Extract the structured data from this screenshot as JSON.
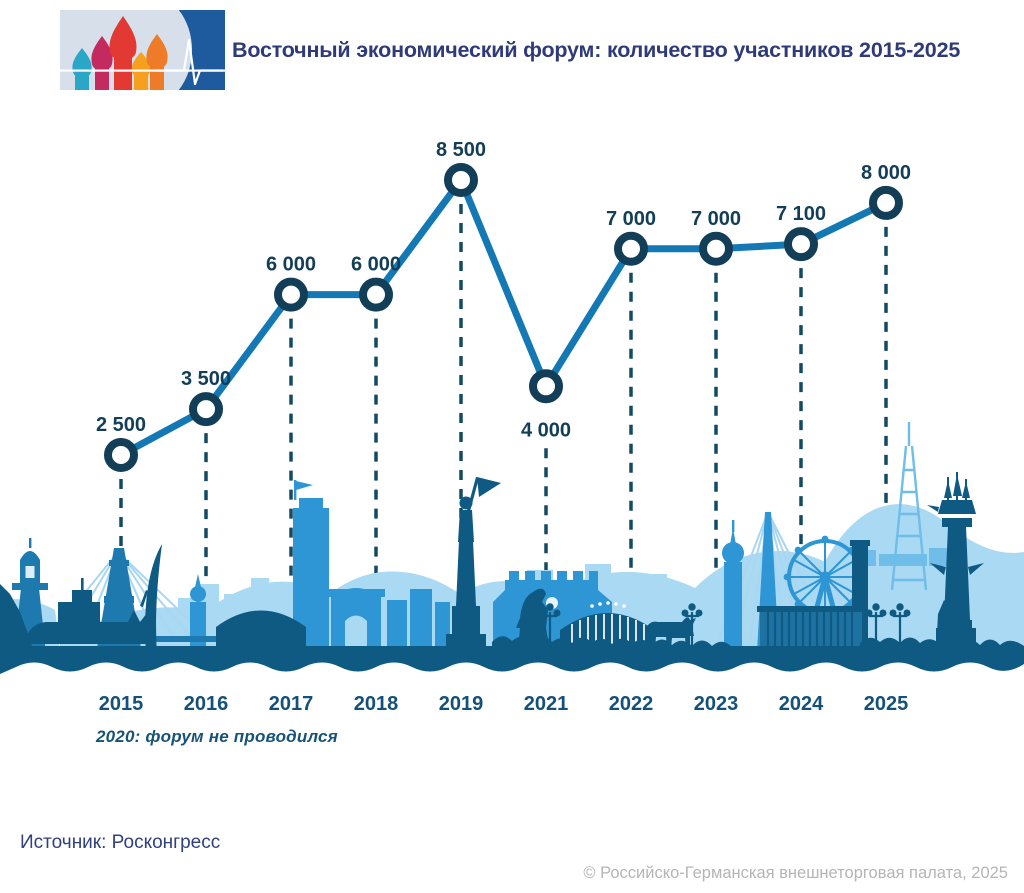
{
  "header": {
    "title": "Восточный экономический форум: количество участников 2015-2025",
    "logo": {
      "panel_light": "#d7e0ea",
      "panel_dark": "#1d5b9e",
      "pulse_line": "#ffffff",
      "dome_colors": [
        "#2aa7c7",
        "#c32a60",
        "#e23a33",
        "#f6a01e",
        "#ee7b28"
      ]
    }
  },
  "chart_data": {
    "type": "line",
    "title": "Восточный экономический форум: количество участников 2015-2025",
    "categories": [
      "2015",
      "2016",
      "2017",
      "2018",
      "2019",
      "2021",
      "2022",
      "2023",
      "2024",
      "2025"
    ],
    "values": [
      2500,
      3500,
      6000,
      6000,
      8500,
      4000,
      7000,
      7000,
      7100,
      8000
    ],
    "point_labels": [
      "2 500",
      "3 500",
      "6 000",
      "6 000",
      "8 500",
      "4 000",
      "7 000",
      "7 000",
      "7 100",
      "8 000"
    ],
    "label_placement": [
      "above",
      "above",
      "above",
      "above",
      "above",
      "below",
      "above",
      "above",
      "above",
      "above"
    ],
    "note": "2020: форум не проводился",
    "xlabel": "",
    "ylabel": "",
    "ylim": [
      0,
      9000
    ],
    "grid": false,
    "legend": "none",
    "colors": {
      "line": "#1478b4",
      "marker_ring": "#123e57",
      "marker_fill": "#ffffff",
      "dropline": "#134a63",
      "point_label": "#123e57",
      "year_label": "#14517a",
      "title": "#2f3b78",
      "note": "#175378",
      "source": "#31407e"
    }
  },
  "skyline_colors": {
    "light": "#a9d9f3",
    "medlight": "#6fbde8",
    "cable": "#a9d6f0",
    "medium": "#2e96d4",
    "medium_deep": "#1e7aae",
    "container": "#1d72a2",
    "dark": "#0f5a82"
  },
  "footer": {
    "source": "Источник: Росконгресс",
    "copyright": "© Российско-Германская внешнеторговая палата, 2025"
  }
}
